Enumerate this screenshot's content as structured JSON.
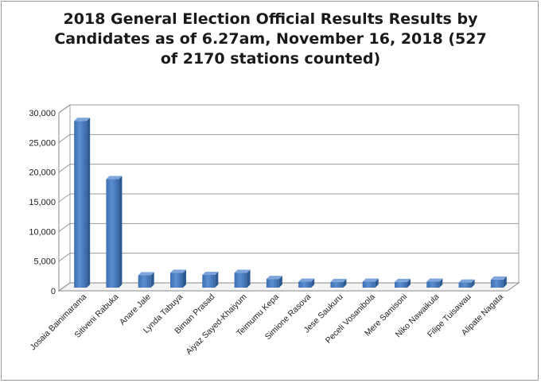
{
  "chart_data": {
    "type": "bar",
    "title": "2018 General Election Official Results Results by Candidates as of 6.27am, November 16, 2018 (527 of 2170 stations counted)",
    "xlabel": "",
    "ylabel": "",
    "ylim": [
      0,
      30000
    ],
    "yticks": [
      "0",
      "5,000",
      "10,000",
      "15,000",
      "20,000",
      "25,000",
      "30,000"
    ],
    "grid": true,
    "legend": "none",
    "style": "3d",
    "bar_color": "#4a7fc1",
    "categories": [
      "Josaia Bainimarama",
      "Sitiveni Rabuka",
      "Anare Jale",
      "Lynda Tabuya",
      "Biman Prasad",
      "Aiyaz Sayed-Khaiyum",
      "Teimumu Kepa",
      "Simione Rasova",
      "Jese Saukuru",
      "Peceli Vosanibola",
      "Mere Samisoni",
      "Niko Nawaikula",
      "Filipe Tuisawau",
      "Alipate Nagata"
    ],
    "values": [
      28100,
      18300,
      2100,
      2500,
      2150,
      2500,
      1450,
      1000,
      950,
      1000,
      950,
      1000,
      850,
      1350
    ]
  }
}
